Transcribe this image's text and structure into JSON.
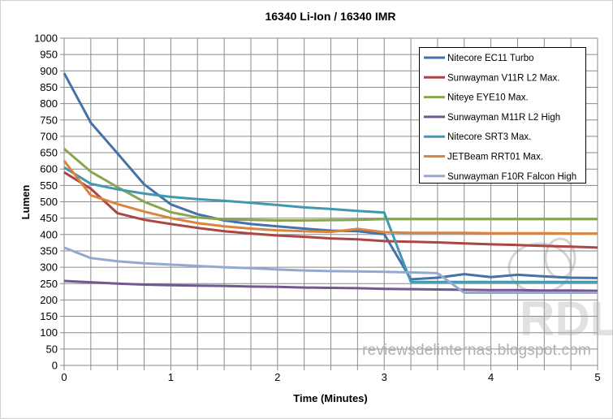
{
  "chart_data": {
    "type": "line",
    "title": "16340 Li-Ion / 16340 IMR",
    "xlabel": "Time (Minutes)",
    "ylabel": "Lumen",
    "xlim": [
      0,
      5
    ],
    "ylim": [
      0,
      1000
    ],
    "x_ticks": [
      0,
      1,
      2,
      3,
      4,
      5
    ],
    "y_ticks": [
      0,
      50,
      100,
      150,
      200,
      250,
      300,
      350,
      400,
      450,
      500,
      550,
      600,
      650,
      700,
      750,
      800,
      850,
      900,
      950,
      1000
    ],
    "grid": true,
    "legend_position": "top-right",
    "x": [
      0,
      0.25,
      0.5,
      0.75,
      1,
      1.25,
      1.5,
      1.75,
      2,
      2.25,
      2.5,
      2.75,
      3,
      3.25,
      3.5,
      3.75,
      4,
      4.25,
      4.5,
      4.75,
      5
    ],
    "series": [
      {
        "name": "Nitecore EC11 Turbo",
        "color": "#4572A7",
        "values": [
          893,
          742,
          648,
          553,
          492,
          462,
          443,
          432,
          425,
          418,
          412,
          410,
          401,
          263,
          268,
          279,
          270,
          277,
          272,
          268,
          267
        ]
      },
      {
        "name": "Sunwayman V11R L2 Max.",
        "color": "#AA4643",
        "values": [
          590,
          540,
          465,
          445,
          432,
          420,
          410,
          403,
          397,
          393,
          388,
          385,
          380,
          378,
          376,
          373,
          370,
          368,
          365,
          363,
          360
        ]
      },
      {
        "name": "Niteye EYE10 Max.",
        "color": "#89A54E",
        "values": [
          662,
          592,
          545,
          500,
          468,
          452,
          446,
          445,
          443,
          443,
          444,
          445,
          447,
          447,
          447,
          447,
          447,
          447,
          447,
          447,
          447
        ]
      },
      {
        "name": "Sunwayman M11R L2 High",
        "color": "#71588F",
        "values": [
          258,
          254,
          250,
          247,
          245,
          244,
          243,
          241,
          240,
          238,
          237,
          236,
          234,
          233,
          232,
          231,
          230,
          230,
          229,
          229,
          228
        ]
      },
      {
        "name": "Nitecore SRT3 Max.",
        "color": "#4198AF",
        "values": [
          605,
          555,
          538,
          525,
          515,
          508,
          503,
          497,
          490,
          483,
          478,
          472,
          467,
          255,
          255,
          255,
          255,
          255,
          255,
          255,
          255
        ]
      },
      {
        "name": "JETBeam RRT01 Max.",
        "color": "#DB843D",
        "values": [
          625,
          520,
          493,
          470,
          450,
          435,
          425,
          418,
          413,
          410,
          408,
          417,
          407,
          405,
          405,
          405,
          404,
          404,
          404,
          403,
          403
        ]
      },
      {
        "name": "Sunwayman F10R Falcon High",
        "color": "#93A9CF",
        "values": [
          360,
          328,
          318,
          312,
          308,
          304,
          300,
          297,
          293,
          290,
          288,
          287,
          286,
          284,
          282,
          222,
          222,
          222,
          222,
          222,
          222
        ]
      }
    ]
  },
  "watermark": {
    "text": "reviewsdelinternas.blogspot.com",
    "logo_text": "RDL"
  }
}
